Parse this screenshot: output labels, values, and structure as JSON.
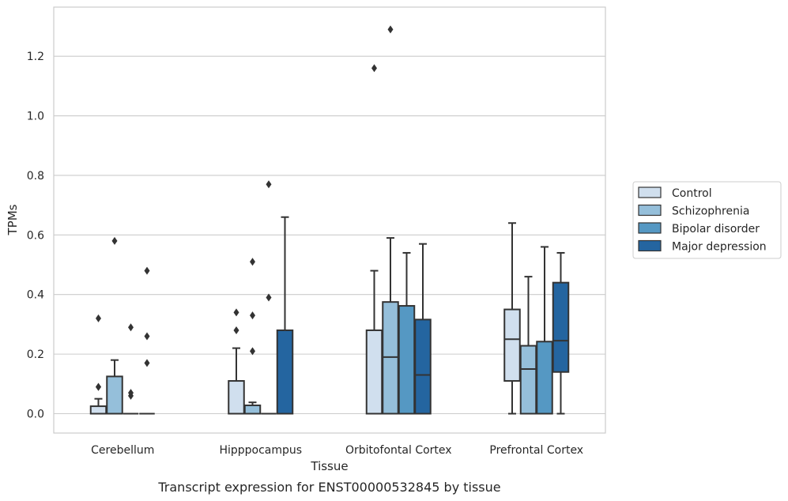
{
  "chart_data": {
    "type": "box",
    "caption": "Transcript expression for ENST00000532845 by tissue",
    "xlabel": "Tissue",
    "ylabel": "TPMs",
    "ylim": [
      -0.065,
      1.365
    ],
    "yticks": [
      0.0,
      0.2,
      0.4,
      0.6,
      0.8,
      1.0,
      1.2
    ],
    "grid": "horizontal",
    "legend_position": "right",
    "categories": [
      "Cerebellum",
      "Hipppocampus",
      "Orbitofontal Cortex",
      "Prefrontal Cortex"
    ],
    "series": [
      {
        "name": "Control",
        "color": "#d0dfee",
        "boxes": [
          {
            "whislo": 0,
            "q1": 0,
            "med": 0,
            "q3": 0.025,
            "whishi": 0.05,
            "fliers": [
              0.09,
              0.09,
              0.32
            ]
          },
          {
            "whislo": 0,
            "q1": 0,
            "med": 0,
            "q3": 0.11,
            "whishi": 0.22,
            "fliers": [
              0.28,
              0.34
            ]
          },
          {
            "whislo": 0,
            "q1": 0,
            "med": 0,
            "q3": 0.28,
            "whishi": 0.48,
            "fliers": [
              1.16
            ]
          },
          {
            "whislo": 0,
            "q1": 0.11,
            "med": 0.25,
            "q3": 0.35,
            "whishi": 0.64,
            "fliers": []
          }
        ]
      },
      {
        "name": "Schizophrenia",
        "color": "#95bfda",
        "boxes": [
          {
            "whislo": 0,
            "q1": 0,
            "med": 0,
            "q3": 0.125,
            "whishi": 0.18,
            "fliers": [
              0.58
            ]
          },
          {
            "whislo": 0,
            "q1": 0,
            "med": 0,
            "q3": 0.028,
            "whishi": 0.038,
            "fliers": [
              0.21,
              0.33,
              0.51
            ]
          },
          {
            "whislo": 0,
            "q1": 0,
            "med": 0.19,
            "q3": 0.375,
            "whishi": 0.59,
            "fliers": [
              1.29
            ]
          },
          {
            "whislo": 0,
            "q1": 0,
            "med": 0.15,
            "q3": 0.228,
            "whishi": 0.46,
            "fliers": []
          }
        ]
      },
      {
        "name": "Bipolar disorder",
        "color": "#5598c3",
        "boxes": [
          {
            "whislo": 0,
            "q1": 0,
            "med": 0,
            "q3": 0,
            "whishi": 0,
            "fliers": [
              0.06,
              0.07,
              0.29
            ]
          },
          {
            "whislo": 0,
            "q1": 0,
            "med": 0,
            "q3": 0,
            "whishi": 0,
            "fliers": [
              0.39,
              0.77
            ]
          },
          {
            "whislo": 0,
            "q1": 0,
            "med": 0,
            "q3": 0.362,
            "whishi": 0.54,
            "fliers": []
          },
          {
            "whislo": 0,
            "q1": 0,
            "med": 0,
            "q3": 0.242,
            "whishi": 0.56,
            "fliers": []
          }
        ]
      },
      {
        "name": "Major depression",
        "color": "#2465a0",
        "boxes": [
          {
            "whislo": 0,
            "q1": 0,
            "med": 0,
            "q3": 0,
            "whishi": 0,
            "fliers": [
              0.17,
              0.26,
              0.48
            ]
          },
          {
            "whislo": 0,
            "q1": 0,
            "med": 0,
            "q3": 0.28,
            "whishi": 0.66,
            "fliers": []
          },
          {
            "whislo": 0,
            "q1": 0,
            "med": 0.13,
            "q3": 0.316,
            "whishi": 0.57,
            "fliers": []
          },
          {
            "whislo": 0,
            "q1": 0.14,
            "med": 0.245,
            "q3": 0.44,
            "whishi": 0.54,
            "fliers": []
          }
        ]
      }
    ]
  }
}
